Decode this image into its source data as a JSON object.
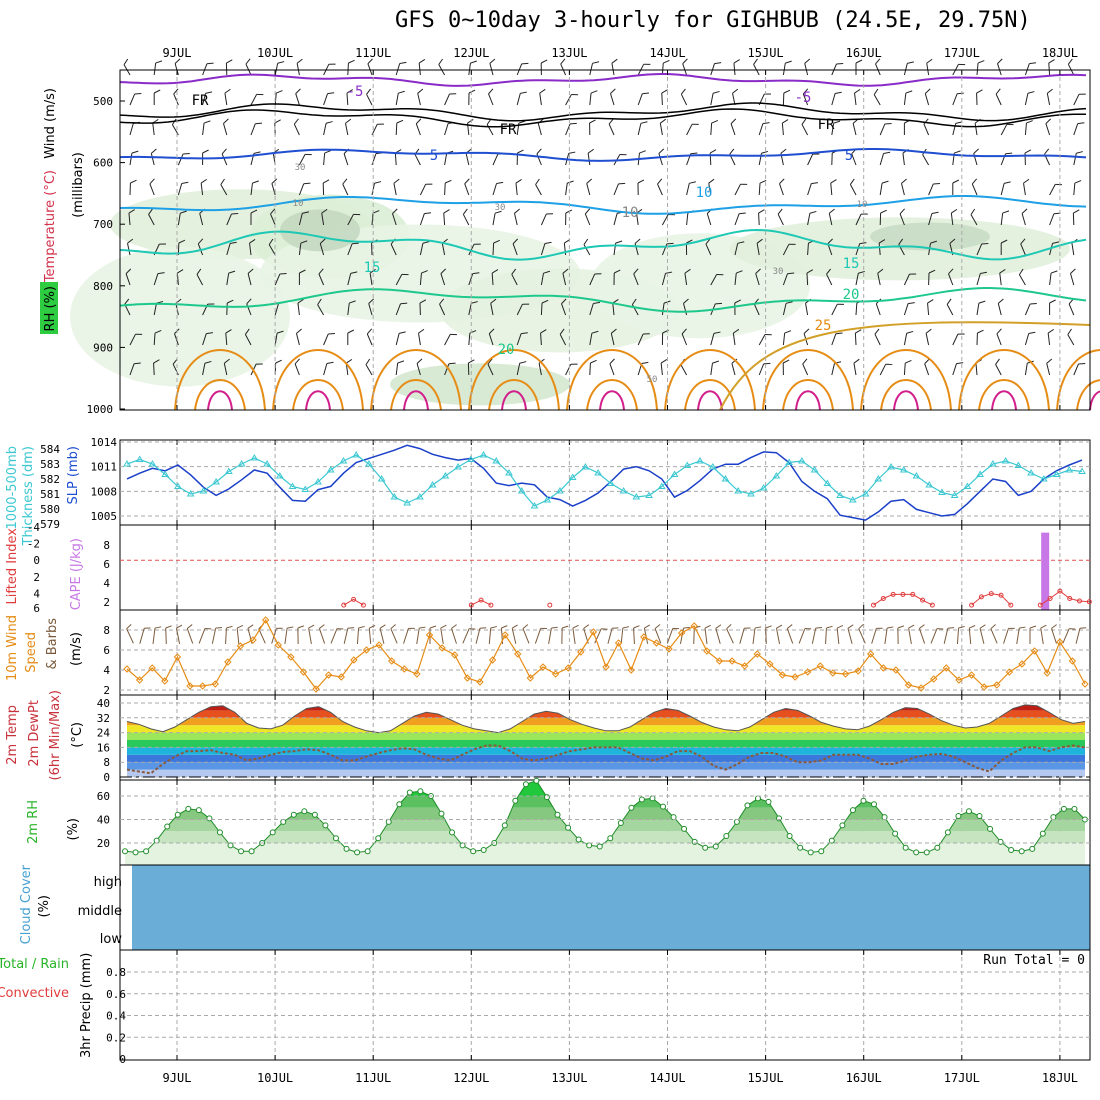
{
  "title": "GFS 0~10day 3-hourly for GIGHBUB (24.5E, 29.75N)",
  "date_labels": [
    "9JUL",
    "10JUL",
    "11JUL",
    "12JUL",
    "13JUL",
    "14JUL",
    "15JUL",
    "16JUL",
    "17JUL",
    "18JUL"
  ],
  "colors": {
    "rh_green": "#b9e0b4",
    "purple": "#8a2bc8",
    "blue": "#1f4fd0",
    "lightblue": "#1ea0e6",
    "teal": "#1ec8b4",
    "green": "#1ec88c",
    "orange": "#e68c14",
    "magenta": "#d21e8c",
    "cyan": "#3cc8d2",
    "cloud": "#6aaed8"
  },
  "chart_data": [
    {
      "type": "line",
      "name_panel": "upper-air",
      "y_labels": [
        "Wind (m/s)",
        "Temperature (°C)",
        "RH (%)"
      ],
      "ylabel": "(millibars)",
      "y_ticks": [
        500,
        600,
        700,
        800,
        900,
        1000
      ],
      "contour_labels": [
        "-5",
        "-5",
        "FR",
        "FR",
        "FR",
        "5",
        "5",
        "10",
        "10",
        "15",
        "15",
        "20",
        "20",
        "25",
        "10",
        "30",
        "50",
        "10",
        "30",
        "30"
      ]
    },
    {
      "type": "line",
      "name_panel": "slp-thickness",
      "y_labels_left": [
        "1000-500mb",
        "Thickness (dm)"
      ],
      "y_label_right": "SLP (mb)",
      "thickness_ticks": [
        579,
        580,
        581,
        582,
        583,
        584
      ],
      "slp_ticks": [
        1005,
        1008,
        1011,
        1014
      ],
      "slp_series": [
        1009.5,
        1010.2,
        1010.8,
        1010.5,
        1011.2,
        1010.0,
        1008.5,
        1007.5,
        1008.3,
        1009.4,
        1010.6,
        1010.2,
        1008.5,
        1006.9,
        1006.8,
        1008.2,
        1008.6,
        1010.2,
        1011.5,
        1012.0,
        1012.5,
        1013.0,
        1013.6,
        1013.2,
        1012.5,
        1012.1,
        1011.8,
        1012.0,
        1010.8,
        1009.0,
        1008.7,
        1009.0,
        1008.8,
        1007.3,
        1007.0,
        1006.2,
        1006.9,
        1007.8,
        1009.2,
        1010.7,
        1011.0,
        1010.5,
        1009.5,
        1007.3,
        1008.1,
        1009.3,
        1010.7,
        1011.3,
        1011.3,
        1012.1,
        1012.8,
        1012.7,
        1011.5,
        1009.2,
        1008.0,
        1007.1,
        1005.1,
        1004.8,
        1004.5,
        1005.5,
        1006.8,
        1007.0,
        1005.8,
        1005.4,
        1005.0,
        1005.2,
        1006.5,
        1008.0,
        1009.5,
        1009.2,
        1007.5,
        1008.0,
        1009.5,
        1010.5,
        1011.2,
        1011.8
      ],
      "thickness_series": [
        583.0,
        583.3,
        583.0,
        582.3,
        581.5,
        581.0,
        581.2,
        581.8,
        582.5,
        583.0,
        583.4,
        583.0,
        582.2,
        581.5,
        581.3,
        581.8,
        582.6,
        583.2,
        583.6,
        583.0,
        582.0,
        580.8,
        580.4,
        580.8,
        581.6,
        582.2,
        582.8,
        583.3,
        583.6,
        583.2,
        582.4,
        581.2,
        580.2,
        580.6,
        581.2,
        582.1,
        582.8,
        582.4,
        581.7,
        581.2,
        580.8,
        580.9,
        581.5,
        582.3,
        582.9,
        583.2,
        582.8,
        582.0,
        581.2,
        581.0,
        581.4,
        582.2,
        583.1,
        583.2,
        582.6,
        581.7,
        580.9,
        580.6,
        581.0,
        582.0,
        582.8,
        582.6,
        582.2,
        581.6,
        581.1,
        580.9,
        581.5,
        582.3,
        583.0,
        583.2,
        582.9,
        582.4,
        582.0,
        582.3,
        582.6,
        582.5
      ]
    },
    {
      "type": "bar",
      "name_panel": "lifted-cape",
      "y_label_left": "Lifted Index",
      "y_label_right": "CAPE (J/kg)",
      "li_ticks": [
        "-4",
        "-2",
        "0",
        "2",
        "4",
        "6"
      ],
      "cape_ticks": [
        2,
        4,
        6,
        8
      ],
      "cape_bar_day": 9.85,
      "cape_bar_value": 9.3,
      "li_points": [
        [
          2.7,
          5.4
        ],
        [
          2.8,
          4.7
        ],
        [
          2.9,
          5.4
        ],
        [
          4.0,
          5.4
        ],
        [
          4.1,
          4.8
        ],
        [
          4.2,
          5.4
        ],
        [
          4.8,
          5.4
        ],
        [
          8.1,
          5.4
        ],
        [
          8.2,
          4.6
        ],
        [
          8.3,
          4.1
        ],
        [
          8.4,
          4.1
        ],
        [
          8.5,
          4.1
        ],
        [
          8.6,
          4.8
        ],
        [
          8.7,
          5.4
        ],
        [
          9.1,
          5.4
        ],
        [
          9.2,
          4.4
        ],
        [
          9.3,
          4.0
        ],
        [
          9.4,
          4.2
        ],
        [
          9.5,
          5.4
        ],
        [
          9.8,
          5.4
        ],
        [
          9.9,
          4.6
        ],
        [
          10.0,
          3.7
        ],
        [
          10.1,
          4.6
        ],
        [
          10.2,
          4.9
        ],
        [
          10.3,
          5.0
        ]
      ]
    },
    {
      "type": "line",
      "name_panel": "wind10m",
      "y_labels": [
        "10m Wind",
        "Speed",
        "& Barbs"
      ],
      "ylabel": "(m/s)",
      "y_ticks": [
        2,
        4,
        6,
        8
      ],
      "values": [
        4.1,
        3.0,
        4.2,
        2.9,
        5.3,
        2.4,
        2.4,
        2.6,
        4.8,
        6.4,
        7.0,
        9.0,
        6.5,
        5.3,
        3.8,
        2.1,
        3.5,
        3.3,
        5.0,
        6.0,
        6.5,
        4.9,
        4.1,
        3.6,
        7.5,
        6.2,
        5.5,
        3.2,
        2.8,
        5.0,
        7.5,
        5.6,
        3.2,
        4.3,
        3.6,
        4.2,
        5.8,
        7.8,
        4.3,
        6.7,
        4.0,
        7.3,
        6.7,
        6.1,
        7.7,
        8.4,
        5.9,
        4.9,
        4.9,
        4.4,
        5.6,
        4.6,
        3.5,
        3.3,
        3.8,
        4.4,
        3.7,
        3.6,
        3.9,
        5.6,
        4.2,
        4.0,
        2.5,
        2.2,
        3.1,
        4.2,
        3.0,
        3.5,
        2.3,
        2.5,
        3.8,
        4.6,
        5.9,
        3.7,
        6.8,
        4.9,
        2.6
      ]
    },
    {
      "type": "area",
      "name_panel": "temp2m",
      "y_labels": [
        "2m Temp",
        "2m DewPt",
        "(6hr Min/Max)"
      ],
      "ylabel": "(°C)",
      "y_ticks": [
        0,
        8,
        16,
        24,
        32,
        40
      ],
      "temp_series": [
        30,
        28.5,
        26,
        24.5,
        27,
        31,
        35,
        38,
        38.5,
        35,
        29,
        26.5,
        26,
        28,
        33,
        37,
        38,
        35,
        30,
        27,
        25,
        24,
        25,
        29,
        33,
        35,
        34,
        31,
        28,
        26,
        25,
        24,
        26,
        30,
        34,
        35.5,
        34.5,
        31,
        28.5,
        26.5,
        25,
        25,
        27,
        31,
        35,
        37,
        36,
        33,
        29.5,
        27,
        25.5,
        25,
        27,
        31,
        35,
        37,
        36,
        33,
        29.5,
        27.5,
        26,
        25.5,
        27.5,
        31,
        35,
        37.5,
        37,
        34,
        30.5,
        28,
        26.5,
        27,
        29,
        33,
        37,
        39,
        38.5,
        35,
        31,
        29,
        30
      ],
      "dew_series": [
        4,
        3,
        2,
        7,
        11,
        14,
        14,
        14.5,
        13,
        12,
        9,
        10,
        12,
        13.5,
        14,
        15,
        14.5,
        12,
        9,
        9,
        11,
        13,
        14.5,
        15.5,
        15,
        12,
        10,
        9,
        12,
        15,
        17,
        17,
        14,
        10,
        9,
        10,
        12,
        14,
        15,
        16,
        16,
        16,
        13,
        10,
        9,
        11,
        14,
        14,
        11,
        6,
        4,
        7,
        11,
        13,
        13,
        11,
        8,
        8,
        9,
        12,
        12,
        12,
        10,
        7,
        7,
        9,
        11,
        12,
        12.5,
        11,
        8,
        5,
        3,
        9,
        13,
        16,
        16,
        14,
        16,
        17,
        16
      ]
    },
    {
      "type": "area",
      "name_panel": "rh2m",
      "y_label": "2m RH",
      "ylabel": "(%)",
      "y_ticks": [
        20,
        40,
        60
      ],
      "values": [
        13,
        12,
        13,
        22,
        34,
        44,
        49,
        48,
        41,
        29,
        18,
        13,
        13,
        20,
        29,
        38,
        44,
        47,
        44,
        35,
        24,
        15,
        12,
        13,
        24,
        38,
        53,
        63,
        64,
        60,
        45,
        29,
        18,
        13,
        14,
        20,
        35,
        56,
        70,
        73,
        59,
        44,
        33,
        23,
        18,
        17,
        24,
        37,
        50,
        57,
        58,
        51,
        42,
        32,
        21,
        16,
        17,
        26,
        38,
        52,
        58,
        55,
        41,
        26,
        16,
        12,
        13,
        22,
        35,
        48,
        56,
        53,
        42,
        28,
        16,
        12,
        12,
        16,
        29,
        43,
        47,
        43,
        32,
        21,
        14,
        13,
        15,
        28,
        42,
        49,
        49,
        40
      ]
    },
    {
      "type": "area",
      "name_panel": "cloud",
      "y_labels": [
        "Cloud Cover",
        "(%)"
      ],
      "level_labels": [
        "high",
        "middle",
        "low"
      ]
    },
    {
      "type": "bar",
      "name_panel": "precip",
      "y_labels_left": [
        "Total / Rain",
        "Convective"
      ],
      "ylabel": "3hr Precip (mm)",
      "y_ticks": [
        "0",
        "0.2",
        "0.4",
        "0.6",
        "0.8"
      ],
      "run_total": "Run Total = 0",
      "values": []
    }
  ]
}
